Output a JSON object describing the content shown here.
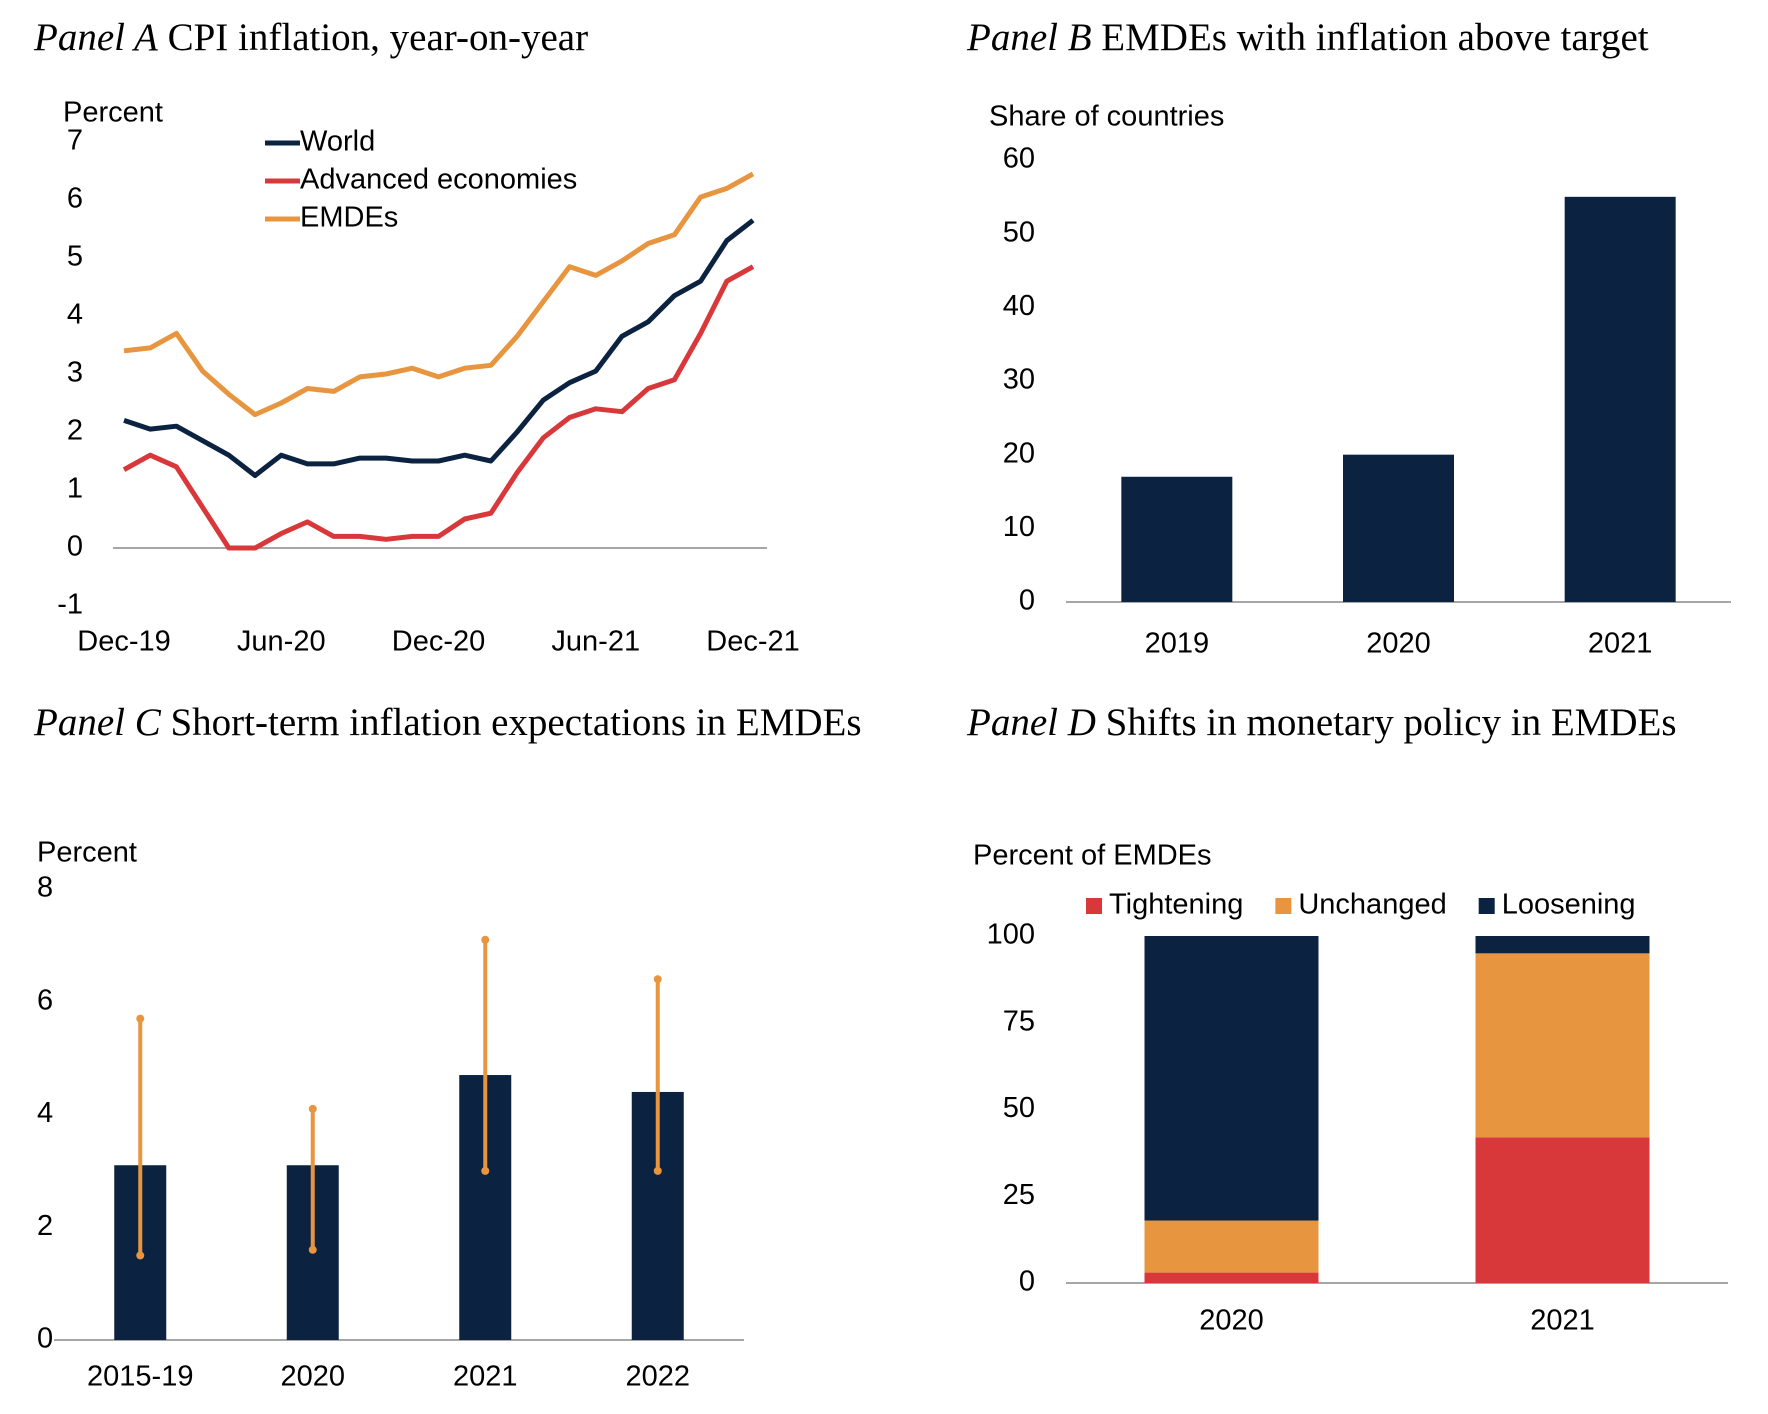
{
  "chart_data": [
    {
      "type": "line",
      "panel": "Panel A",
      "title": "CPI inflation, year-on-year",
      "y_label": "Percent",
      "categories": [
        "Dec-19",
        null,
        null,
        null,
        null,
        null,
        "Jun-20",
        null,
        null,
        null,
        null,
        null,
        "Dec-20",
        null,
        null,
        null,
        null,
        null,
        "Jun-21",
        null,
        null,
        null,
        null,
        null,
        "Dec-21"
      ],
      "series": [
        {
          "name": "World",
          "color": "#0b2341",
          "values": [
            2.2,
            2.05,
            2.1,
            1.85,
            1.6,
            1.25,
            1.6,
            1.45,
            1.45,
            1.55,
            1.55,
            1.5,
            1.5,
            1.6,
            1.5,
            2.0,
            2.55,
            2.85,
            3.05,
            3.65,
            3.9,
            4.35,
            4.6,
            5.3,
            5.65
          ]
        },
        {
          "name": "Advanced economies",
          "color": "#d9383a",
          "values": [
            1.35,
            1.6,
            1.4,
            0.7,
            0.0,
            0.0,
            0.25,
            0.45,
            0.2,
            0.2,
            0.15,
            0.2,
            0.2,
            0.5,
            0.6,
            1.3,
            1.9,
            2.25,
            2.4,
            2.35,
            2.75,
            2.9,
            3.7,
            4.6,
            4.85
          ]
        },
        {
          "name": "EMDEs",
          "color": "#e8953f",
          "values": [
            3.4,
            3.45,
            3.7,
            3.05,
            2.65,
            2.3,
            2.5,
            2.75,
            2.7,
            2.95,
            3.0,
            3.1,
            2.95,
            3.1,
            3.15,
            3.65,
            4.25,
            4.85,
            4.7,
            4.95,
            5.25,
            5.4,
            6.05,
            6.2,
            6.45
          ]
        }
      ],
      "ylim": [
        -1,
        7
      ],
      "yticks": [
        -1,
        0,
        1,
        2,
        3,
        4,
        5,
        6,
        7
      ]
    },
    {
      "type": "bar",
      "panel": "Panel B",
      "title": "EMDEs with inflation above target",
      "y_label": "Share of countries",
      "categories": [
        "2019",
        "2020",
        "2021"
      ],
      "values": [
        17,
        20,
        55
      ],
      "color": "#0b2341",
      "ylim": [
        0,
        60
      ],
      "yticks": [
        0,
        10,
        20,
        30,
        40,
        50,
        60
      ]
    },
    {
      "type": "errorbar",
      "panel": "Panel C",
      "title": "Short-term inflation expectations in EMDEs",
      "y_label": "Percent",
      "categories": [
        "2015-19",
        "2020",
        "2021",
        "2022"
      ],
      "values": [
        3.1,
        3.1,
        4.7,
        4.4
      ],
      "lower": [
        1.5,
        1.6,
        3.0,
        3.0
      ],
      "upper": [
        5.7,
        4.1,
        7.1,
        6.4
      ],
      "color": "#0b2341",
      "error_color": "#e8953f",
      "ylim": [
        0,
        8
      ],
      "yticks": [
        0,
        2,
        4,
        6,
        8
      ]
    },
    {
      "type": "stacked_bar",
      "panel": "Panel D",
      "title": "Shifts in monetary policy in EMDEs",
      "y_label": "Percent of EMDEs",
      "categories": [
        "2020",
        "2021"
      ],
      "series": [
        {
          "name": "Tightening",
          "color": "#d9383a",
          "values": [
            3,
            42
          ]
        },
        {
          "name": "Unchanged",
          "color": "#e8953f",
          "values": [
            15,
            53
          ]
        },
        {
          "name": "Loosening",
          "color": "#0b2341",
          "values": [
            82,
            5
          ]
        }
      ],
      "ylim": [
        0,
        100
      ],
      "yticks": [
        0,
        25,
        50,
        75,
        100
      ]
    }
  ]
}
